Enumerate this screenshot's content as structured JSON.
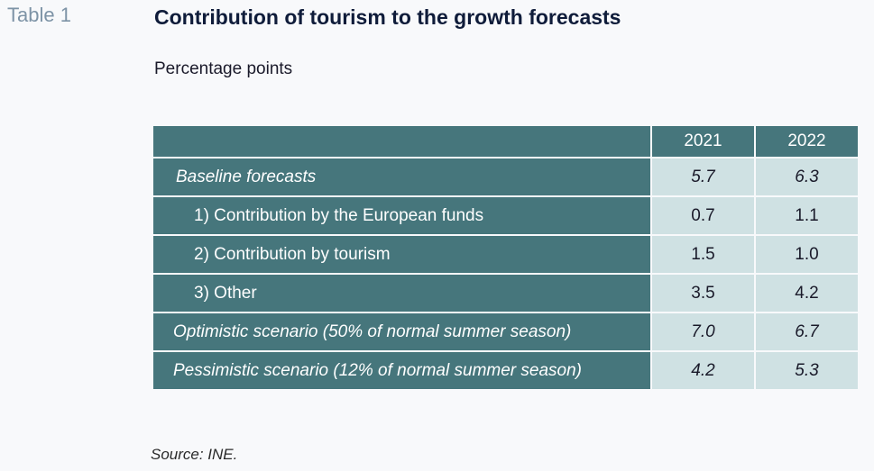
{
  "header": {
    "table_number": "Table 1",
    "title": "Contribution of tourism to the growth forecasts",
    "subtitle": "Percentage points"
  },
  "table": {
    "columns": [
      "",
      "2021",
      "2022"
    ],
    "rows": [
      {
        "label": "Baseline forecasts",
        "v2021": "5.7",
        "v2022": "6.3"
      },
      {
        "label": "1) Contribution by the European funds",
        "v2021": "0.7",
        "v2022": "1.1"
      },
      {
        "label": "2) Contribution by tourism",
        "v2021": "1.5",
        "v2022": "1.0"
      },
      {
        "label": "3) Other",
        "v2021": "3.5",
        "v2022": "4.2"
      },
      {
        "label": "Optimistic scenario (50% of normal summer season)",
        "v2021": "7.0",
        "v2022": "6.7"
      },
      {
        "label": "Pessimistic scenario (12% of normal summer season)",
        "v2021": "4.2",
        "v2022": "5.3"
      }
    ]
  },
  "footer": {
    "source": "Source: INE."
  },
  "colors": {
    "header_fill": "#46767c",
    "value_fill": "#cfe1e3",
    "title_color": "#0f1c3a",
    "table_number_color": "#7d93a6"
  }
}
